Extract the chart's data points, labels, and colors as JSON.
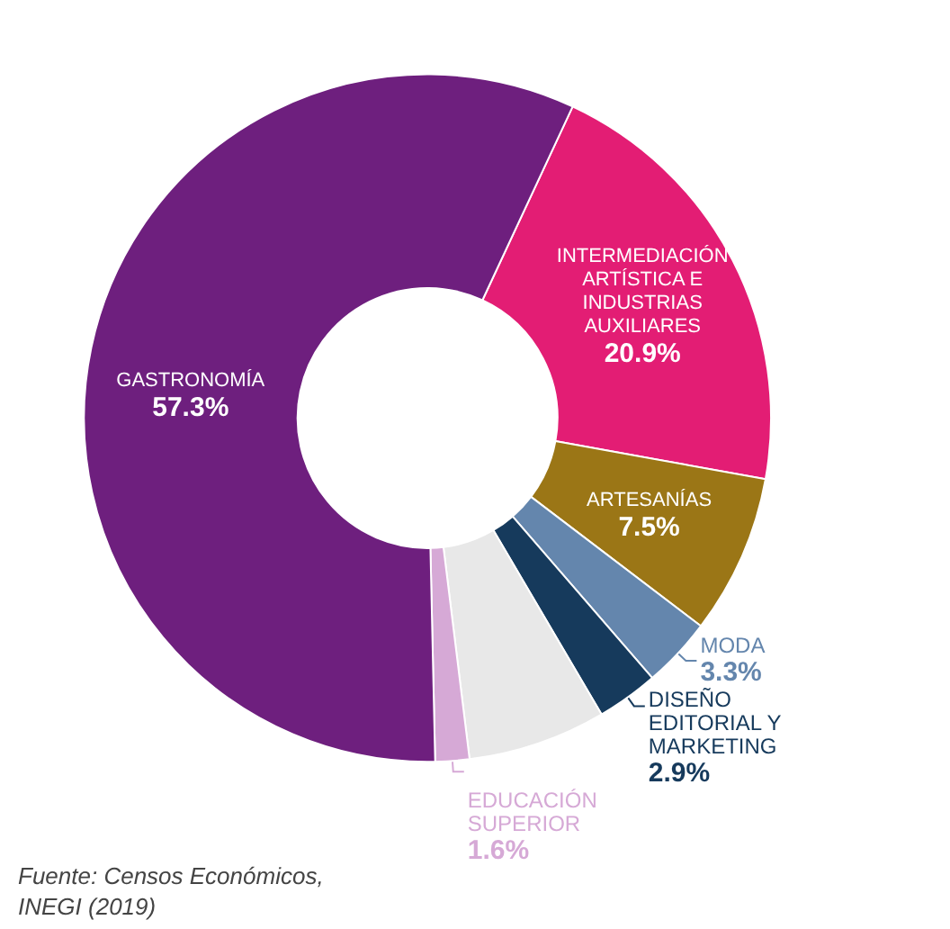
{
  "chart_data": {
    "type": "donut",
    "categories": [
      "INTERMEDIACIÓN ARTÍSTICA E INDUSTRIAS AUXILIARES",
      "ARTESANÍAS",
      "MODA",
      "DISEÑO EDITORIAL Y MARKETING",
      null,
      "EDUCACIÓN SUPERIOR",
      "GASTRONOMÍA"
    ],
    "values": [
      20.9,
      7.5,
      3.3,
      2.9,
      6.5,
      1.6,
      57.3
    ],
    "value_labels": [
      "20.9%",
      "7.5%",
      "3.3%",
      "2.9%",
      null,
      "1.6%",
      "57.3%"
    ],
    "colors": [
      "#e31d74",
      "#9b7616",
      "#6486ad",
      "#163a5c",
      "#e8e8e8",
      "#d6a9d6",
      "#6e1f7e"
    ],
    "annotations": [
      "Fuente: Censos Económicos, INEGI (2019)"
    ]
  }
}
